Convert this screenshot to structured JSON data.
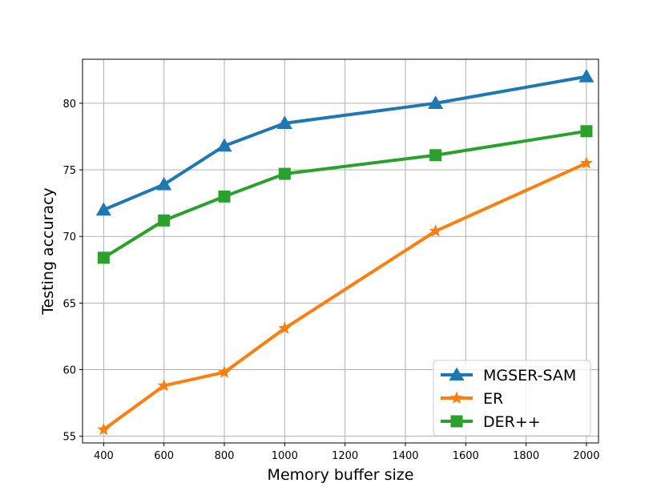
{
  "chart_data": {
    "type": "line",
    "title": "",
    "xlabel": "Memory buffer size",
    "ylabel": "Testing accuracy",
    "xlim": [
      330,
      2040
    ],
    "ylim": [
      54.5,
      83.3
    ],
    "xticks": [
      400,
      600,
      800,
      1000,
      1200,
      1400,
      1600,
      1800,
      2000
    ],
    "yticks": [
      55,
      60,
      65,
      70,
      75,
      80
    ],
    "grid": true,
    "legend_position": "lower-right",
    "x": [
      400,
      600,
      800,
      1000,
      1500,
      2000
    ],
    "series": [
      {
        "name": "MGSER-SAM",
        "color": "#1f77b4",
        "marker": "triangle",
        "values": [
          72.0,
          73.9,
          76.8,
          78.5,
          80.0,
          82.0
        ]
      },
      {
        "name": "ER",
        "color": "#ff7f0e",
        "marker": "star",
        "values": [
          55.5,
          58.8,
          59.8,
          63.1,
          70.4,
          75.5
        ]
      },
      {
        "name": "DER++",
        "color": "#2ca02c",
        "marker": "square",
        "values": [
          68.4,
          71.2,
          73.0,
          74.7,
          76.1,
          77.9
        ]
      }
    ]
  }
}
